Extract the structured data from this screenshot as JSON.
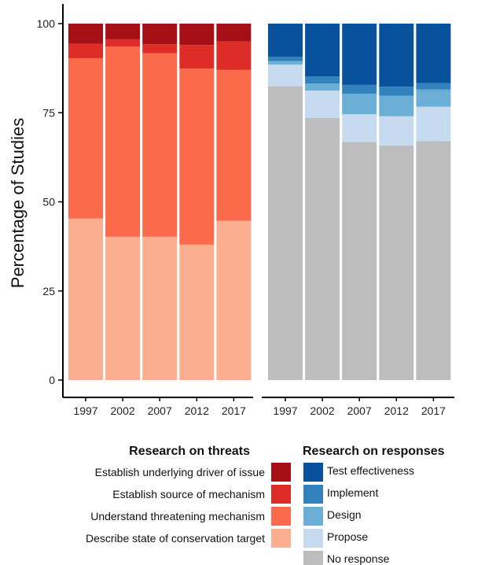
{
  "chart_data": [
    {
      "type": "bar",
      "stacked": true,
      "categories": [
        "1997",
        "2002",
        "2007",
        "2012",
        "2017"
      ],
      "ylabel": "Percentage of Studies",
      "ylim": [
        0,
        100
      ],
      "yticks": [
        0,
        25,
        50,
        75,
        100
      ],
      "grid": false,
      "series": [
        {
          "name": "Describe state of conservation target",
          "color": "#fcae91",
          "values": [
            45.3,
            40.2,
            40.2,
            38.0,
            44.7
          ]
        },
        {
          "name": "Understand threatening mechanism",
          "color": "#fb6a4a",
          "values": [
            45.0,
            53.4,
            51.5,
            49.4,
            42.3
          ]
        },
        {
          "name": "Establish source of mechanism",
          "color": "#de2d26",
          "values": [
            4.0,
            2.0,
            2.5,
            6.6,
            8.0
          ]
        },
        {
          "name": "Establish underlying driver  of issue",
          "color": "#a50f15",
          "values": [
            5.7,
            4.4,
            5.8,
            6.0,
            5.0
          ]
        }
      ],
      "legend_title": "Research on threats"
    },
    {
      "type": "bar",
      "stacked": true,
      "categories": [
        "1997",
        "2002",
        "2007",
        "2012",
        "2017"
      ],
      "ylim": [
        0,
        100
      ],
      "grid": false,
      "series": [
        {
          "name": "No response",
          "color": "#bdbdbd",
          "values": [
            82.5,
            73.5,
            66.8,
            65.8,
            67.0
          ]
        },
        {
          "name": "Propose",
          "color": "#c6dbef",
          "values": [
            6.0,
            7.7,
            7.8,
            8.2,
            9.7
          ]
        },
        {
          "name": "Design",
          "color": "#6baed6",
          "values": [
            1.0,
            2.0,
            5.7,
            5.8,
            4.8
          ]
        },
        {
          "name": "Implement",
          "color": "#3182bd",
          "values": [
            1.2,
            2.0,
            2.5,
            2.5,
            1.8
          ]
        },
        {
          "name": "Test effectiveness",
          "color": "#08519c",
          "values": [
            9.3,
            14.8,
            17.2,
            17.7,
            16.7
          ]
        }
      ],
      "legend_title": "Research on responses"
    }
  ]
}
